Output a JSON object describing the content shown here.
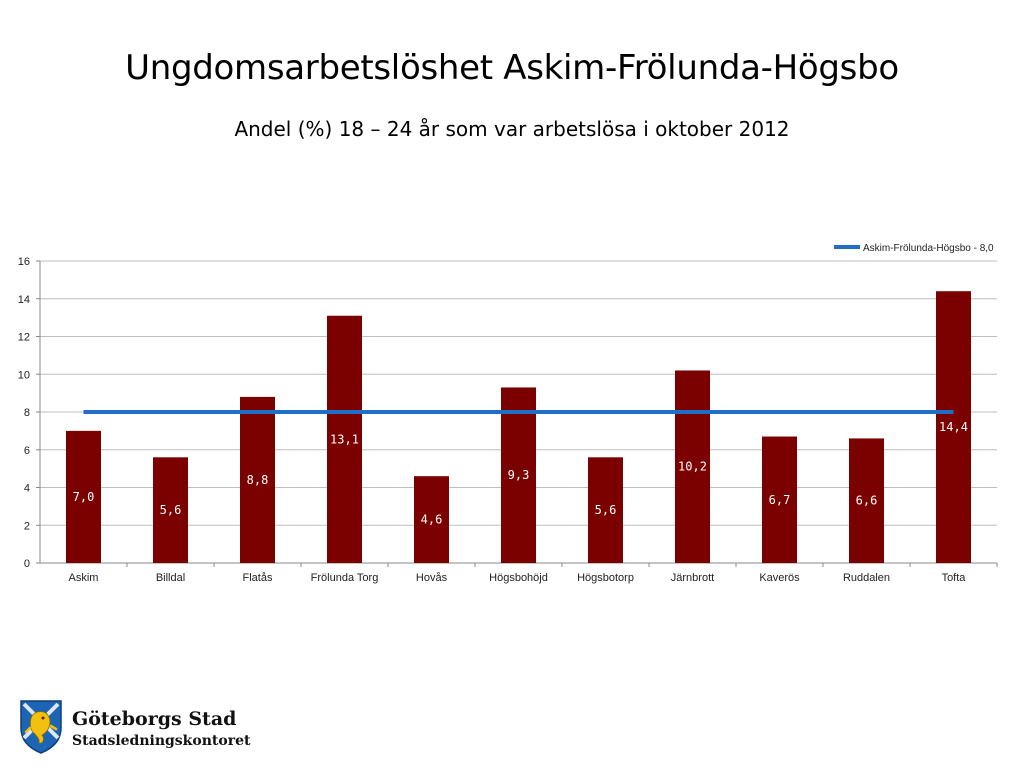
{
  "slide": {
    "title": "Ungdomsarbetslöshet Askim-Frölunda-Högsbo",
    "subtitle": "Andel (%) 18 – 24 år som var arbetslösa i oktober 2012"
  },
  "footer": {
    "org_name": "Göteborgs Stad",
    "org_dept": "Stadsledningskontoret",
    "logo_icon": "goteborg-crest-icon"
  },
  "chart_data": {
    "type": "bar",
    "title": "",
    "xlabel": "",
    "ylabel": "",
    "ylim": [
      0,
      16
    ],
    "yticks": [
      0,
      2,
      4,
      6,
      8,
      10,
      12,
      14,
      16
    ],
    "grid": true,
    "legend_position": "top-right",
    "categories": [
      "Askim",
      "Billdal",
      "Flatås",
      "Frölunda Torg",
      "Hovås",
      "Högsbohöjd",
      "Högsbotorp",
      "Järnbrott",
      "Kaverös",
      "Ruddalen",
      "Tofta"
    ],
    "series": [
      {
        "type": "bar",
        "values": [
          7.0,
          5.6,
          8.8,
          13.1,
          4.6,
          9.3,
          5.6,
          10.2,
          6.7,
          6.6,
          14.4
        ],
        "labels": [
          "7,0",
          "5,6",
          "8,8",
          "13,1",
          "4,6",
          "9,3",
          "5,6",
          "10,2",
          "6,7",
          "6,6",
          "14,4"
        ],
        "color": "#7b0000",
        "label_color": "#ffffff"
      },
      {
        "type": "line",
        "name": "Askim-Frölunda-Högsbo - 8,0",
        "value": 8.0,
        "color": "#1f6fc6"
      }
    ]
  }
}
